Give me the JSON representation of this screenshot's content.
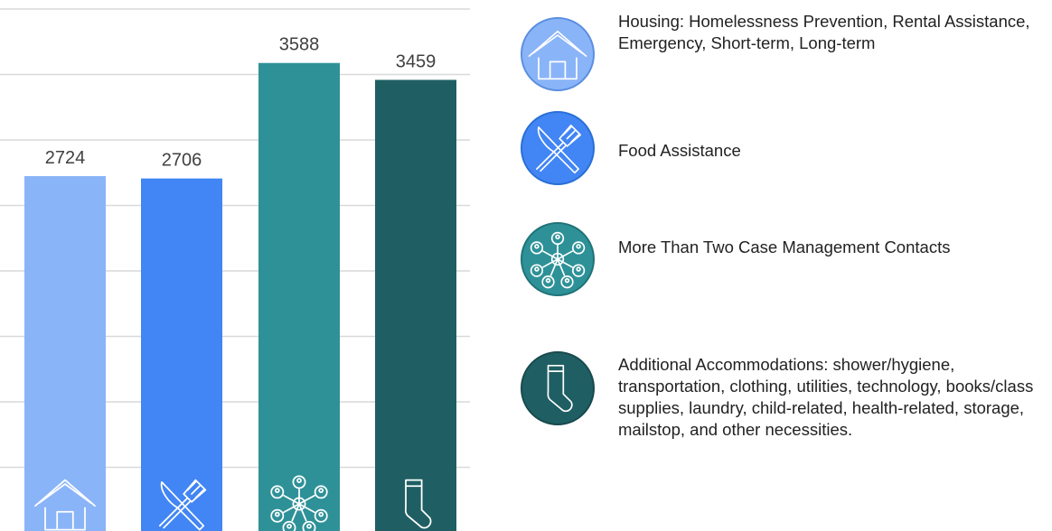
{
  "chart_data": {
    "type": "bar",
    "categories": [
      "Housing: Homelessness Prevention, Rental Assistance, Emergency, Short-term, Long-term",
      "Food Assistance",
      "More Than Two Case Management Contacts",
      "Additional Accommodations: shower/hygiene, transportation, clothing, utilities, technology, books/class supplies, laundry, child-related,  health-related, storage, mailstop, and other necessities."
    ],
    "values": [
      2724,
      2706,
      3588,
      3459
    ],
    "colors": [
      "#8ab4f8",
      "#4285f4",
      "#2e9198",
      "#1f5f63"
    ],
    "ylim": [
      0,
      4000
    ],
    "yticks": [
      0,
      500,
      1000,
      1500,
      2000,
      2500,
      3000,
      3500,
      4000
    ],
    "grid": true
  }
}
